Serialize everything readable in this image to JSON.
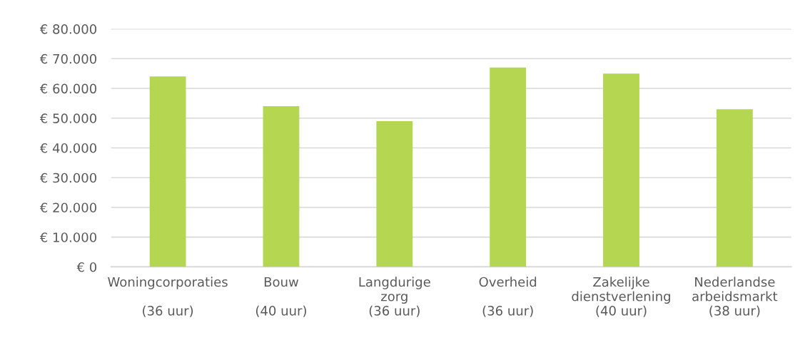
{
  "chart_data": {
    "type": "bar",
    "categories": [
      "Woningcorporaties\n\n(36 uur)",
      "Bouw\n\n(40 uur)",
      "Langdurige\nzorg\n(36 uur)",
      "Overheid\n\n(36 uur)",
      "Zakelijke\ndienstverlening\n(40 uur)",
      "Nederlandse\narbeidsmarkt\n(38 uur)"
    ],
    "values": [
      64000,
      54000,
      49000,
      67000,
      65000,
      53000
    ],
    "color": "#b4d651",
    "ylim": [
      0,
      80000
    ],
    "yticks": [
      {
        "value": 0,
        "label": "€ 0"
      },
      {
        "value": 10000,
        "label": "€ 10.000"
      },
      {
        "value": 20000,
        "label": "€ 20.000"
      },
      {
        "value": 30000,
        "label": "€ 30.000"
      },
      {
        "value": 40000,
        "label": "€ 40.000"
      },
      {
        "value": 50000,
        "label": "€ 50.000"
      },
      {
        "value": 60000,
        "label": "€ 60.000"
      },
      {
        "value": 70000,
        "label": "€ 70.000"
      },
      {
        "value": 80000,
        "label": "€ 80.000"
      }
    ],
    "grid": "y"
  }
}
